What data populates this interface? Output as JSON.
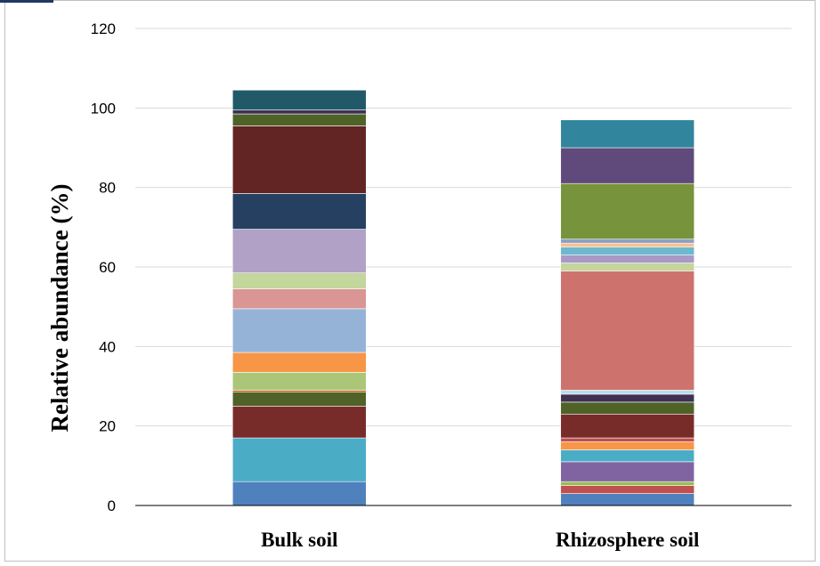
{
  "chart_data": {
    "type": "bar",
    "stacked": true,
    "title": "",
    "xlabel": "",
    "ylabel": "Relative abundance (%)",
    "ylim": [
      0,
      120
    ],
    "yticks": [
      "0",
      "20",
      "40",
      "60",
      "80",
      "100",
      "120"
    ],
    "grid": true,
    "categories": [
      "Bulk soil",
      "Rhizosphere soil"
    ],
    "segments": [
      {
        "category": "Bulk soil",
        "stack": [
          {
            "value": 6,
            "color": "#4f81bd"
          },
          {
            "value": 11,
            "color": "#4bacc6"
          },
          {
            "value": 8,
            "color": "#772c2a"
          },
          {
            "value": 3.5,
            "color": "#4f6228"
          },
          {
            "value": 0.5,
            "color": "#b65708"
          },
          {
            "value": 4.5,
            "color": "#acc678"
          },
          {
            "value": 5,
            "color": "#f79646"
          },
          {
            "value": 11,
            "color": "#95b3d7"
          },
          {
            "value": 5,
            "color": "#d99694"
          },
          {
            "value": 4,
            "color": "#c3d69b"
          },
          {
            "value": 11,
            "color": "#b2a1c7"
          },
          {
            "value": 9,
            "color": "#254061"
          },
          {
            "value": 17,
            "color": "#632523"
          },
          {
            "value": 3,
            "color": "#4f6228"
          },
          {
            "value": 1,
            "color": "#403152"
          },
          {
            "value": 5,
            "color": "#215968"
          }
        ]
      },
      {
        "category": "Rhizosphere soil",
        "stack": [
          {
            "value": 3,
            "color": "#4f81bd"
          },
          {
            "value": 2,
            "color": "#c0504d"
          },
          {
            "value": 1,
            "color": "#9bbb59"
          },
          {
            "value": 5,
            "color": "#8064a2"
          },
          {
            "value": 3,
            "color": "#4bacc6"
          },
          {
            "value": 2,
            "color": "#f79646"
          },
          {
            "value": 1,
            "color": "#c0504d"
          },
          {
            "value": 6,
            "color": "#772c2a"
          },
          {
            "value": 3,
            "color": "#4f6228"
          },
          {
            "value": 2,
            "color": "#403152"
          },
          {
            "value": 1,
            "color": "#b7dee8"
          },
          {
            "value": 30,
            "color": "#ce726d"
          },
          {
            "value": 2,
            "color": "#c3d69b"
          },
          {
            "value": 2,
            "color": "#a999c6"
          },
          {
            "value": 2,
            "color": "#6cb9cf"
          },
          {
            "value": 1,
            "color": "#fac090"
          },
          {
            "value": 1,
            "color": "#8aa0c8"
          },
          {
            "value": 14,
            "color": "#77933c"
          },
          {
            "value": 9,
            "color": "#604a7b"
          },
          {
            "value": 7,
            "color": "#31859c"
          }
        ]
      }
    ]
  },
  "colors": {
    "gridline": "#d9d9d9",
    "axis": "#000000",
    "frame": "#bfbfbf",
    "corner_accent": "#1f3864"
  }
}
